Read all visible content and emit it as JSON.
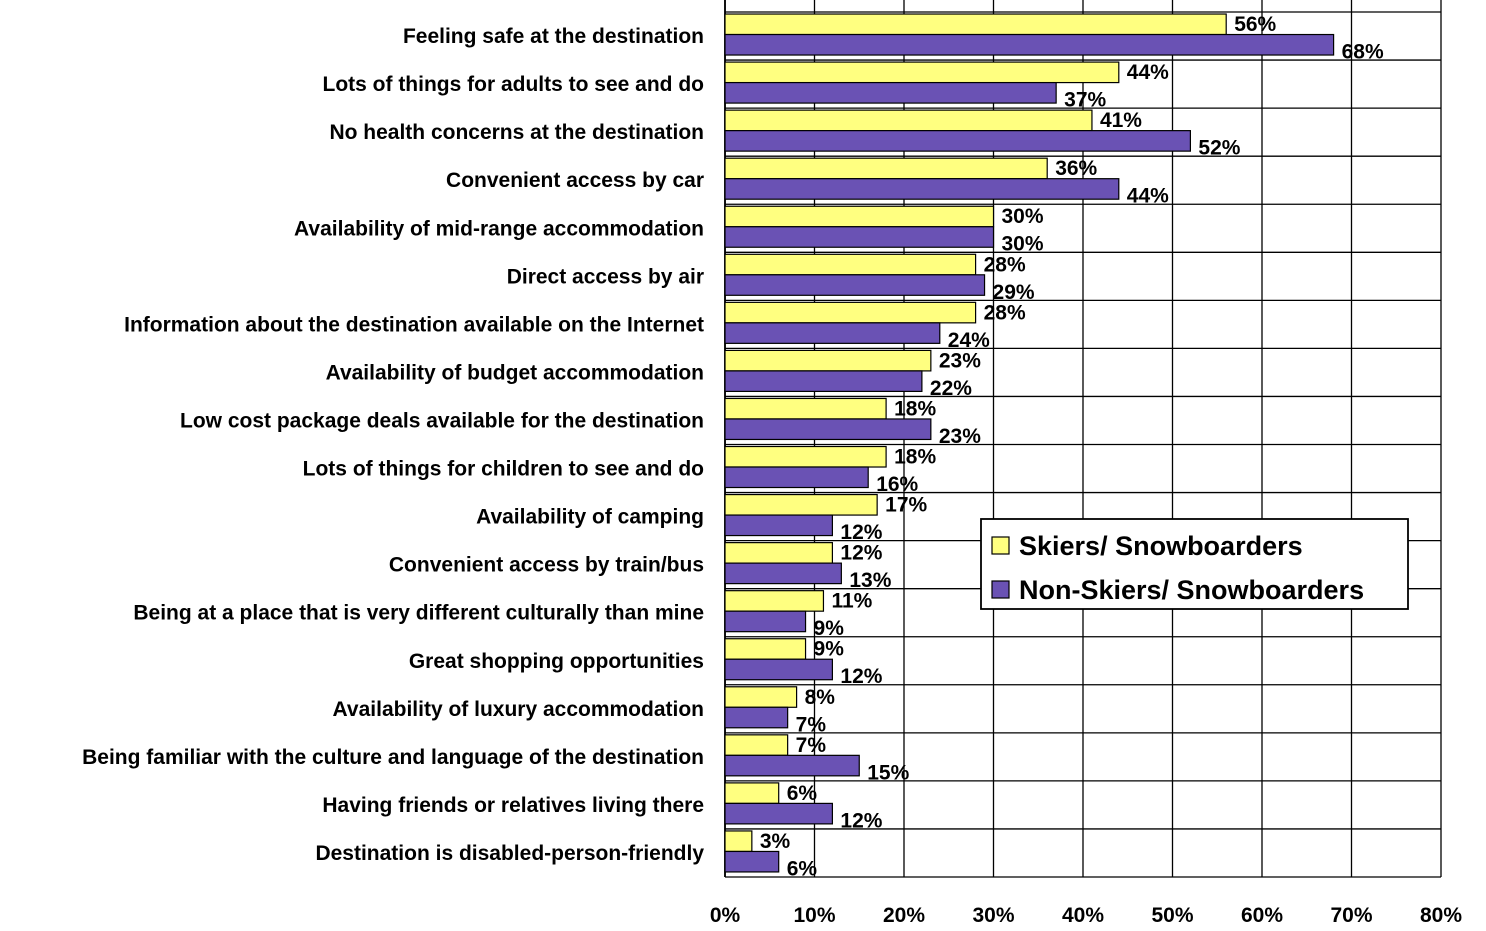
{
  "colors": {
    "skiers": "#FFFF80",
    "non_skiers": "#6A52B4",
    "grid": "#000000",
    "background": "#FFFFFF"
  },
  "chart_data": {
    "type": "bar",
    "orientation": "horizontal",
    "title": "",
    "xlabel": "",
    "ylabel": "",
    "xlim": [
      0,
      80
    ],
    "x_ticks": [
      "0%",
      "10%",
      "20%",
      "30%",
      "40%",
      "50%",
      "60%",
      "70%",
      "80%"
    ],
    "grid": true,
    "legend_position": "center-right",
    "value_suffix": "%",
    "categories": [
      "Feeling safe at the destination",
      "Lots of things for adults to see and do",
      "No health concerns at the destination",
      "Convenient access by car",
      "Availability of mid-range accommodation",
      "Direct access by air",
      "Information about the destination available on the Internet",
      "Availability of budget accommodation",
      "Low cost package deals available for the destination",
      "Lots of things for children to see and do",
      "Availability of camping",
      "Convenient access by train/bus",
      "Being at a place that is very different culturally than mine",
      "Great shopping opportunities",
      "Availability of luxury accommodation",
      "Being familiar with the culture and language of the destination",
      "Having friends or relatives living there",
      "Destination is disabled-person-friendly"
    ],
    "series": [
      {
        "name": "Skiers/ Snowboarders",
        "color": "#FFFF80",
        "values": [
          56,
          44,
          41,
          36,
          30,
          28,
          28,
          23,
          18,
          18,
          17,
          12,
          11,
          9,
          8,
          7,
          6,
          3
        ]
      },
      {
        "name": "Non-Skiers/ Snowboarders",
        "color": "#6A52B4",
        "values": [
          68,
          37,
          52,
          44,
          30,
          29,
          24,
          22,
          23,
          16,
          12,
          13,
          9,
          12,
          7,
          15,
          12,
          6
        ]
      }
    ]
  }
}
